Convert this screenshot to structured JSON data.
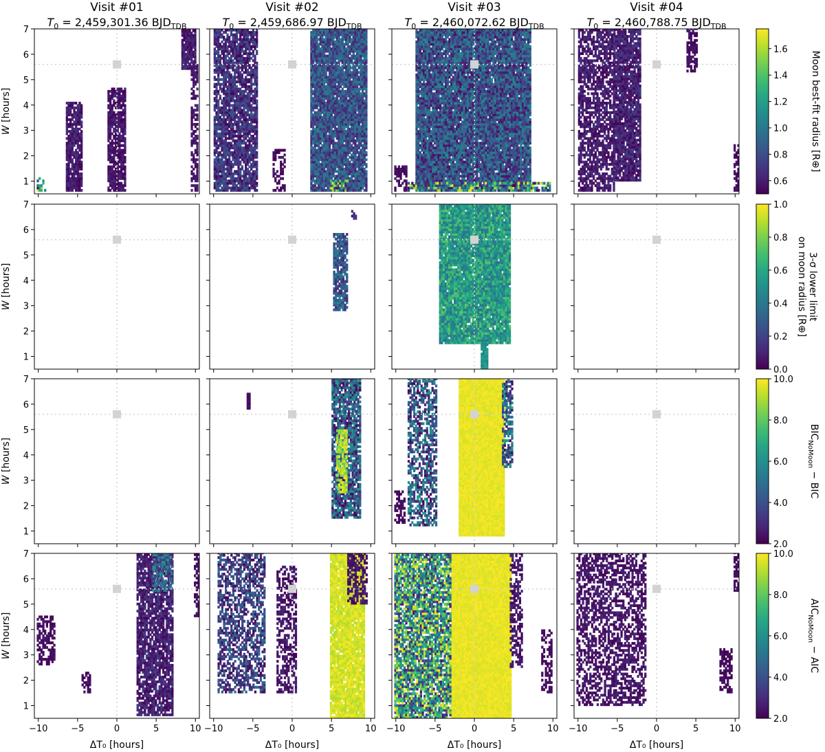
{
  "columns": [
    {
      "visit": "Visit #01",
      "t0_prefix": "T",
      "t0_sub": "0",
      "t0_value": " = 2,459,301.36 BJD",
      "t0_unit_sub": "TDB"
    },
    {
      "visit": "Visit #02",
      "t0_prefix": "T",
      "t0_sub": "0",
      "t0_value": " = 2,459,686.97 BJD",
      "t0_unit_sub": "TDB"
    },
    {
      "visit": "Visit #03",
      "t0_prefix": "T",
      "t0_sub": "0",
      "t0_value": " = 2,460,072.62 BJD",
      "t0_unit_sub": "TDB"
    },
    {
      "visit": "Visit #04",
      "t0_prefix": "T",
      "t0_sub": "0",
      "t0_value": " = 2,460,788.75 BJD",
      "t0_unit_sub": "TDB"
    }
  ],
  "axes": {
    "xlabel": "ΔT₀ [hours]",
    "ylabel": "W [hours]",
    "x_ticks": [
      "−10",
      "−5",
      "0",
      "5",
      "10"
    ],
    "y_ticks": [
      "1",
      "2",
      "3",
      "4",
      "5",
      "6",
      "7"
    ]
  },
  "rows": [
    {
      "colorbar_label": "Moon best-fit radius [R⊕]",
      "cb_ticks": [
        "0.6",
        "0.8",
        "1.0",
        "1.2",
        "1.4",
        "1.6"
      ]
    },
    {
      "colorbar_label": "3-σ lower limit on moon radius [R⊕]",
      "cb_line1": "3-σ lower limit",
      "cb_line2": "on moon radius [R⊕]",
      "cb_ticks": [
        "0.0",
        "0.2",
        "0.4",
        "0.6",
        "0.8",
        "1.0"
      ]
    },
    {
      "colorbar_label": "BIC_NoMoon − BIC",
      "cb_main1": "BIC",
      "cb_sub1": "NoMoon",
      "cb_rest1": " − BIC",
      "cb_ticks": [
        "2.0",
        "4.0",
        "6.0",
        "8.0",
        "10.0"
      ]
    },
    {
      "colorbar_label": "AIC_NoMoon − AIC",
      "cb_main1": "AIC",
      "cb_sub1": "NoMoon",
      "cb_rest1": " − AIC",
      "cb_ticks": [
        "2.0",
        "4.0",
        "6.0",
        "8.0",
        "10.0"
      ]
    }
  ],
  "chart_data": {
    "type": "heatmap",
    "colormap": "viridis",
    "x_range": [
      -10.5,
      10.5
    ],
    "y_range": [
      0.5,
      7.0
    ],
    "reference_marker": {
      "x": 0,
      "y": 5.6,
      "color": "#d3d3d3"
    },
    "colorbar_ranges": [
      [
        0.5,
        1.75
      ],
      [
        0.0,
        1.0
      ],
      [
        2.0,
        10.0
      ],
      [
        2.0,
        10.0
      ]
    ],
    "panels": [
      {
        "row": 0,
        "col": 0,
        "regions": [
          {
            "x": [
              8.2,
              10
            ],
            "y": [
              5.4,
              7.0
            ],
            "vmin": 0.5,
            "vmax": 0.7,
            "density": 0.9
          },
          {
            "x": [
              -6.5,
              -4.5
            ],
            "y": [
              0.6,
              4.1
            ],
            "vmin": 0.5,
            "vmax": 0.7,
            "density": 0.85
          },
          {
            "x": [
              -1.2,
              1.0
            ],
            "y": [
              0.6,
              4.6
            ],
            "vmin": 0.5,
            "vmax": 0.65,
            "density": 0.85
          },
          {
            "x": [
              9.4,
              10.3
            ],
            "y": [
              0.6,
              5.6
            ],
            "vmin": 0.5,
            "vmax": 0.65,
            "density": 0.6
          },
          {
            "x": [
              -10.2,
              -9.2
            ],
            "y": [
              0.6,
              1.1
            ],
            "vmin": 0.5,
            "vmax": 1.7,
            "density": 0.6
          }
        ]
      },
      {
        "row": 0,
        "col": 1,
        "regions": [
          {
            "x": [
              -10,
              -4.5
            ],
            "y": [
              0.6,
              7.0
            ],
            "vmin": 0.5,
            "vmax": 0.85,
            "density": 0.85
          },
          {
            "x": [
              2.3,
              9.5
            ],
            "y": [
              0.6,
              7.0
            ],
            "vmin": 0.6,
            "vmax": 1.05,
            "density": 0.95
          },
          {
            "x": [
              -2.5,
              -1.0
            ],
            "y": [
              0.6,
              2.2
            ],
            "vmin": 0.5,
            "vmax": 0.6,
            "density": 0.5
          },
          {
            "x": [
              4.8,
              7.0
            ],
            "y": [
              0.6,
              1.0
            ],
            "vmin": 0.5,
            "vmax": 1.75,
            "density": 0.8
          }
        ]
      },
      {
        "row": 0,
        "col": 2,
        "regions": [
          {
            "x": [
              -7.5,
              7.0
            ],
            "y": [
              0.6,
              7.0
            ],
            "vmin": 0.55,
            "vmax": 1.1,
            "density": 0.97
          },
          {
            "x": [
              -10.2,
              -8.8
            ],
            "y": [
              0.6,
              1.6
            ],
            "vmin": 0.5,
            "vmax": 0.6,
            "density": 0.6
          },
          {
            "x": [
              -8.5,
              9.5
            ],
            "y": [
              0.6,
              0.9
            ],
            "vmin": 0.5,
            "vmax": 1.75,
            "density": 0.6
          }
        ]
      },
      {
        "row": 0,
        "col": 3,
        "regions": [
          {
            "x": [
              -10,
              -5.5
            ],
            "y": [
              0.6,
              7.0
            ],
            "vmin": 0.5,
            "vmax": 0.7,
            "density": 0.7
          },
          {
            "x": [
              -5.5,
              -2.0
            ],
            "y": [
              1.0,
              7.0
            ],
            "vmin": 0.5,
            "vmax": 0.75,
            "density": 0.9
          },
          {
            "x": [
              3.8,
              5.0
            ],
            "y": [
              5.3,
              7.0
            ],
            "vmin": 0.5,
            "vmax": 0.6,
            "density": 0.7
          },
          {
            "x": [
              9.8,
              10.5
            ],
            "y": [
              0.6,
              2.4
            ],
            "vmin": 0.5,
            "vmax": 0.6,
            "density": 0.7
          }
        ]
      },
      {
        "row": 1,
        "col": 0,
        "regions": []
      },
      {
        "row": 1,
        "col": 1,
        "regions": [
          {
            "x": [
              5.2,
              7.0
            ],
            "y": [
              2.8,
              5.8
            ],
            "vmin": 0.1,
            "vmax": 0.45,
            "density": 0.85
          },
          {
            "x": [
              7.5,
              8.2
            ],
            "y": [
              6.4,
              6.7
            ],
            "vmin": 0.05,
            "vmax": 0.2,
            "density": 0.8
          }
        ]
      },
      {
        "row": 1,
        "col": 2,
        "regions": [
          {
            "x": [
              -4.5,
              4.5
            ],
            "y": [
              1.5,
              7.0
            ],
            "vmin": 0.35,
            "vmax": 0.75,
            "density": 0.97
          },
          {
            "x": [
              0.8,
              1.6
            ],
            "y": [
              0.5,
              1.5
            ],
            "vmin": 0.4,
            "vmax": 0.6,
            "density": 0.9
          }
        ]
      },
      {
        "row": 1,
        "col": 3,
        "regions": []
      },
      {
        "row": 2,
        "col": 0,
        "regions": []
      },
      {
        "row": 2,
        "col": 1,
        "regions": [
          {
            "x": [
              5.0,
              8.5
            ],
            "y": [
              1.5,
              7.0
            ],
            "vmin": 2.0,
            "vmax": 6.5,
            "density": 0.85
          },
          {
            "x": [
              5.6,
              6.8
            ],
            "y": [
              2.5,
              5.0
            ],
            "vmin": 8.0,
            "vmax": 10.0,
            "density": 0.8
          },
          {
            "x": [
              -5.8,
              -5.4
            ],
            "y": [
              5.8,
              6.4
            ],
            "vmin": 2.0,
            "vmax": 2.5,
            "density": 0.9
          }
        ]
      },
      {
        "row": 2,
        "col": 2,
        "regions": [
          {
            "x": [
              -2.0,
              3.8
            ],
            "y": [
              0.8,
              7.0
            ],
            "vmin": 9.5,
            "vmax": 10.0,
            "density": 1.0
          },
          {
            "x": [
              -8.5,
              -5.0
            ],
            "y": [
              1.2,
              7.0
            ],
            "vmin": 2.0,
            "vmax": 6.5,
            "density": 0.6
          },
          {
            "x": [
              3.5,
              4.8
            ],
            "y": [
              3.5,
              7.0
            ],
            "vmin": 2.0,
            "vmax": 7.0,
            "density": 0.7
          },
          {
            "x": [
              -10.2,
              -9.0
            ],
            "y": [
              1.3,
              2.6
            ],
            "vmin": 2.0,
            "vmax": 2.5,
            "density": 0.5
          }
        ]
      },
      {
        "row": 2,
        "col": 3,
        "regions": []
      },
      {
        "row": 3,
        "col": 0,
        "regions": [
          {
            "x": [
              2.5,
              7.0
            ],
            "y": [
              0.6,
              7.0
            ],
            "vmin": 2.0,
            "vmax": 3.5,
            "density": 0.8
          },
          {
            "x": [
              4.5,
              7.0
            ],
            "y": [
              5.5,
              7.0
            ],
            "vmin": 3.0,
            "vmax": 6.5,
            "density": 0.7
          },
          {
            "x": [
              -10.2,
              -8.0
            ],
            "y": [
              2.6,
              4.5
            ],
            "vmin": 2.0,
            "vmax": 2.6,
            "density": 0.6
          },
          {
            "x": [
              -4.5,
              -3.5
            ],
            "y": [
              1.5,
              2.3
            ],
            "vmin": 2.0,
            "vmax": 2.6,
            "density": 0.6
          },
          {
            "x": [
              9.8,
              10.4
            ],
            "y": [
              4.5,
              7.0
            ],
            "vmin": 2.0,
            "vmax": 2.6,
            "density": 0.6
          }
        ]
      },
      {
        "row": 3,
        "col": 1,
        "regions": [
          {
            "x": [
              4.8,
              9.0
            ],
            "y": [
              0.5,
              7.0
            ],
            "vmin": 9.0,
            "vmax": 10.0,
            "density": 0.95
          },
          {
            "x": [
              -9.5,
              -3.5
            ],
            "y": [
              1.5,
              7.0
            ],
            "vmin": 2.0,
            "vmax": 5.0,
            "density": 0.6
          },
          {
            "x": [
              -2.0,
              0.5
            ],
            "y": [
              1.5,
              6.5
            ],
            "vmin": 2.0,
            "vmax": 3.0,
            "density": 0.55
          },
          {
            "x": [
              7.0,
              9.5
            ],
            "y": [
              5.0,
              7.0
            ],
            "vmin": 2.0,
            "vmax": 3.0,
            "density": 0.6
          }
        ]
      },
      {
        "row": 3,
        "col": 2,
        "regions": [
          {
            "x": [
              -3.0,
              4.5
            ],
            "y": [
              0.5,
              7.0
            ],
            "vmin": 9.5,
            "vmax": 10.0,
            "density": 1.0
          },
          {
            "x": [
              -10.2,
              -3.0
            ],
            "y": [
              0.5,
              7.0
            ],
            "vmin": 2.5,
            "vmax": 10.0,
            "density": 0.85
          },
          {
            "x": [
              4.5,
              6.0
            ],
            "y": [
              2.5,
              7.0
            ],
            "vmin": 2.0,
            "vmax": 3.0,
            "density": 0.55
          },
          {
            "x": [
              8.5,
              9.8
            ],
            "y": [
              1.5,
              4.0
            ],
            "vmin": 2.0,
            "vmax": 2.5,
            "density": 0.5
          }
        ]
      },
      {
        "row": 3,
        "col": 3,
        "regions": [
          {
            "x": [
              -10.2,
              -1.5
            ],
            "y": [
              1.0,
              7.0
            ],
            "vmin": 2.0,
            "vmax": 3.0,
            "density": 0.55
          },
          {
            "x": [
              8.0,
              9.5
            ],
            "y": [
              1.5,
              3.2
            ],
            "vmin": 2.0,
            "vmax": 2.5,
            "density": 0.6
          },
          {
            "x": [
              9.8,
              10.4
            ],
            "y": [
              5.5,
              7.0
            ],
            "vmin": 2.0,
            "vmax": 2.5,
            "density": 0.7
          }
        ]
      }
    ]
  }
}
